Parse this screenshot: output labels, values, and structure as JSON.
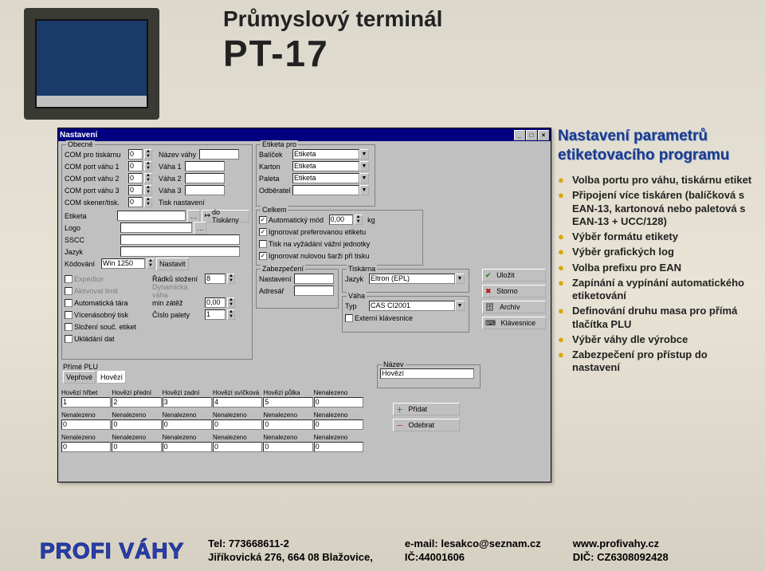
{
  "title": {
    "line1": "Průmyslový terminál",
    "line2": "PT-17"
  },
  "window": {
    "title": "Nastavení",
    "groups": {
      "obecne": {
        "title": "Obecné",
        "rows": [
          {
            "l": "COM pro tiskárnu",
            "v": "0",
            "l2": "Název váhy"
          },
          {
            "l": "COM port váhu 1",
            "v": "0",
            "l2": "Váha 1"
          },
          {
            "l": "COM port váhu 2",
            "v": "0",
            "l2": "Váha 2"
          },
          {
            "l": "COM port váhu 3",
            "v": "0",
            "l2": "Váha 3"
          },
          {
            "l": "COM skener/tisk.",
            "v": "0",
            "l2": "Tisk nastavení"
          }
        ],
        "etiketa": "Etiketa",
        "logo": "Logo",
        "sscc": "SSCC",
        "jazyk": "Jazyk",
        "kodovani_l": "Kódování",
        "kodovani_v": "Win 1250",
        "btn_tiskarny": "do Tiskárny",
        "btn_nastavit": "Nastavit",
        "chks": [
          "Expedice",
          "Aktivovat limit",
          "Automatická tára",
          "Vícenásobný tisk",
          "Složení souč. etiket",
          "Ukládání dat"
        ],
        "chk2": [
          "Řádků složení",
          "Dynamická váha",
          "min zátěž",
          "Číslo palety"
        ],
        "chk2v": [
          "8",
          "",
          "0,00",
          "1"
        ]
      },
      "etiketa_pro": {
        "title": "Etiketa pro",
        "rows": [
          {
            "l": "Balíček",
            "v": "Etiketa"
          },
          {
            "l": "Karton",
            "v": "Etiketa"
          },
          {
            "l": "Paleta",
            "v": "Etiketa"
          },
          {
            "l": "Odběratel",
            "v": ""
          }
        ]
      },
      "celkem": {
        "title": "Celkem",
        "auto": "Automatický mód",
        "auto_v": "0,00",
        "kg": "kg",
        "c1": "Ignorovat preferovanou etiketu",
        "c2": "Tisk na vyžádání vážní jednotky",
        "c3": "Ignorovat nulovou šarži při tisku"
      },
      "zabezpeceni": {
        "title": "Zabezpečení",
        "l1": "Nastavení",
        "l2": "Adresář"
      },
      "tiskarna": {
        "title": "Tiskárna",
        "l": "Jazyk",
        "v": "Eltron (EPL)"
      },
      "vaha": {
        "title": "Váha",
        "l": "Typ",
        "v": "CAS CI2001",
        "c": "Externí klávesnice"
      },
      "nazev": {
        "title": "Název",
        "v": "Hovězí"
      }
    },
    "buttons": {
      "ulozit": "Uložit",
      "storno": "Storno",
      "archiv": "Archív",
      "klavesnice": "Klávesnice",
      "pridat": "Přidat",
      "odebrat": "Odebrat"
    },
    "plu": {
      "title": "Přímé PLU",
      "tabs": [
        "Vepřové",
        "Hovězí"
      ],
      "cols": [
        "Hovězí hřbet",
        "Hovězí přední",
        "Hovězí zadní",
        "Hovězí svíčková",
        "Hovězí půlka",
        "Nenalezeno"
      ],
      "vals": [
        "1",
        "2",
        "3",
        "4",
        "5",
        "0"
      ],
      "na": "Nenalezeno",
      "zero": "0"
    }
  },
  "side": {
    "h1": "Nastavení parametrů",
    "h2": "etiketovacího programu",
    "bullets": [
      "Volba portu pro váhu, tiskárnu etiket",
      "Připojení více tiskáren (balíčková s EAN-13, kartonová nebo paletová s  EAN-13 + UCC/128)",
      "Výběr formátu etikety",
      "Výběr grafických log",
      "Volba prefixu pro EAN",
      "Zapínání a vypínání automatického etiketování",
      "Definování druhu masa pro přímá  tlačítka PLU",
      "Výběr váhy dle výrobce",
      "Zabezpečení pro přístup do nastavení"
    ]
  },
  "footer": {
    "logo": "PROFI VÁHY",
    "tel_l": "Tel: ",
    "tel": "773668611-2",
    "addr": "Jiříkovická 276, 664 08 Blažovice,",
    "email_l": "e-mail: ",
    "email": "lesakco@seznam.cz",
    "ic_l": "IČ:",
    "ic": "44001606",
    "www": "www.profivahy.cz",
    "dic_l": "DIČ: ",
    "dic": "CZ6308092428"
  },
  "colors": {
    "titlebar": "#000080",
    "bullet": "#d6a800",
    "heading": "#1a3a8a"
  }
}
